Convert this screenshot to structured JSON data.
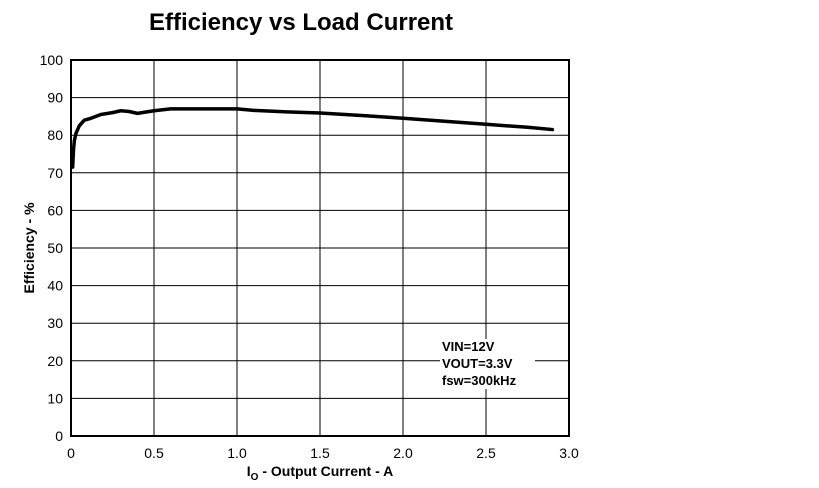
{
  "chart_data": {
    "type": "line",
    "title": "Efficiency vs Load Current",
    "xlabel_main": "I",
    "xlabel_sub": "O",
    "xlabel_rest": " - Output Current - A",
    "ylabel": "Efficiency - %",
    "xlim": [
      0,
      3.0
    ],
    "ylim": [
      0,
      100
    ],
    "x_ticks": [
      "0",
      "0.5",
      "1.0",
      "1.5",
      "2.0",
      "2.5",
      "3.0"
    ],
    "y_ticks": [
      "0",
      "10",
      "20",
      "30",
      "40",
      "50",
      "60",
      "70",
      "80",
      "90",
      "100"
    ],
    "grid": true,
    "annotations": [
      "VIN=12V",
      "VOUT=3.3V",
      "fsw=300kHz"
    ],
    "series": [
      {
        "x": [
          0.01,
          0.015,
          0.02,
          0.03,
          0.05,
          0.08,
          0.12,
          0.18,
          0.25,
          0.3,
          0.35,
          0.4,
          0.5,
          0.6,
          0.8,
          1.0,
          1.05,
          1.1,
          1.3,
          1.5,
          1.8,
          1.9,
          2.0,
          2.25,
          2.5,
          2.75,
          2.9
        ],
        "y": [
          71.5,
          76,
          78.5,
          80.5,
          82.5,
          84,
          84.5,
          85.5,
          86,
          86.5,
          86.3,
          85.8,
          86.5,
          87,
          87,
          87,
          86.8,
          86.6,
          86.2,
          85.9,
          85.1,
          84.8,
          84.5,
          83.7,
          82.9,
          82.1,
          81.5
        ]
      }
    ],
    "line_color": "#000000"
  }
}
